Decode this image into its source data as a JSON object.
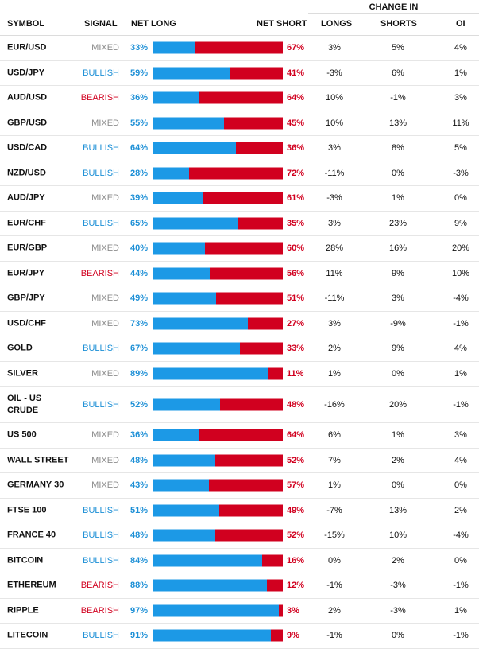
{
  "colors": {
    "bullish": "#1c8fd6",
    "bearish": "#d1001f",
    "mixed": "#8c8c8c",
    "long_bar": "#1c99e6",
    "short_bar": "#d1001f"
  },
  "header": {
    "change_in": "CHANGE IN",
    "symbol": "SYMBOL",
    "signal": "SIGNAL",
    "net_long": "NET LONG",
    "net_short": "NET SHORT",
    "longs": "LONGS",
    "shorts": "SHORTS",
    "oi": "OI"
  },
  "rows": [
    {
      "symbol": "EUR/USD",
      "signal": "MIXED",
      "net_long": "33%",
      "net_short": "67%",
      "long_frac": 0.33,
      "longs": "3%",
      "shorts": "5%",
      "oi": "4%"
    },
    {
      "symbol": "USD/JPY",
      "signal": "BULLISH",
      "net_long": "59%",
      "net_short": "41%",
      "long_frac": 0.59,
      "longs": "-3%",
      "shorts": "6%",
      "oi": "1%"
    },
    {
      "symbol": "AUD/USD",
      "signal": "BEARISH",
      "net_long": "36%",
      "net_short": "64%",
      "long_frac": 0.36,
      "longs": "10%",
      "shorts": "-1%",
      "oi": "3%"
    },
    {
      "symbol": "GBP/USD",
      "signal": "MIXED",
      "net_long": "55%",
      "net_short": "45%",
      "long_frac": 0.55,
      "longs": "10%",
      "shorts": "13%",
      "oi": "11%"
    },
    {
      "symbol": "USD/CAD",
      "signal": "BULLISH",
      "net_long": "64%",
      "net_short": "36%",
      "long_frac": 0.64,
      "longs": "3%",
      "shorts": "8%",
      "oi": "5%"
    },
    {
      "symbol": "NZD/USD",
      "signal": "BULLISH",
      "net_long": "28%",
      "net_short": "72%",
      "long_frac": 0.28,
      "longs": "-11%",
      "shorts": "0%",
      "oi": "-3%"
    },
    {
      "symbol": "AUD/JPY",
      "signal": "MIXED",
      "net_long": "39%",
      "net_short": "61%",
      "long_frac": 0.39,
      "longs": "-3%",
      "shorts": "1%",
      "oi": "0%"
    },
    {
      "symbol": "EUR/CHF",
      "signal": "BULLISH",
      "net_long": "65%",
      "net_short": "35%",
      "long_frac": 0.65,
      "longs": "3%",
      "shorts": "23%",
      "oi": "9%"
    },
    {
      "symbol": "EUR/GBP",
      "signal": "MIXED",
      "net_long": "40%",
      "net_short": "60%",
      "long_frac": 0.4,
      "longs": "28%",
      "shorts": "16%",
      "oi": "20%"
    },
    {
      "symbol": "EUR/JPY",
      "signal": "BEARISH",
      "net_long": "44%",
      "net_short": "56%",
      "long_frac": 0.44,
      "longs": "11%",
      "shorts": "9%",
      "oi": "10%"
    },
    {
      "symbol": "GBP/JPY",
      "signal": "MIXED",
      "net_long": "49%",
      "net_short": "51%",
      "long_frac": 0.49,
      "longs": "-11%",
      "shorts": "3%",
      "oi": "-4%"
    },
    {
      "symbol": "USD/CHF",
      "signal": "MIXED",
      "net_long": "73%",
      "net_short": "27%",
      "long_frac": 0.73,
      "longs": "3%",
      "shorts": "-9%",
      "oi": "-1%"
    },
    {
      "symbol": "GOLD",
      "signal": "BULLISH",
      "net_long": "67%",
      "net_short": "33%",
      "long_frac": 0.67,
      "longs": "2%",
      "shorts": "9%",
      "oi": "4%"
    },
    {
      "symbol": "SILVER",
      "signal": "MIXED",
      "net_long": "89%",
      "net_short": "11%",
      "long_frac": 0.89,
      "longs": "1%",
      "shorts": "0%",
      "oi": "1%"
    },
    {
      "symbol": "OIL - US CRUDE",
      "signal": "BULLISH",
      "net_long": "52%",
      "net_short": "48%",
      "long_frac": 0.52,
      "longs": "-16%",
      "shorts": "20%",
      "oi": "-1%"
    },
    {
      "symbol": "US 500",
      "signal": "MIXED",
      "net_long": "36%",
      "net_short": "64%",
      "long_frac": 0.36,
      "longs": "6%",
      "shorts": "1%",
      "oi": "3%"
    },
    {
      "symbol": "WALL STREET",
      "signal": "MIXED",
      "net_long": "48%",
      "net_short": "52%",
      "long_frac": 0.48,
      "longs": "7%",
      "shorts": "2%",
      "oi": "4%"
    },
    {
      "symbol": "GERMANY 30",
      "signal": "MIXED",
      "net_long": "43%",
      "net_short": "57%",
      "long_frac": 0.43,
      "longs": "1%",
      "shorts": "0%",
      "oi": "0%"
    },
    {
      "symbol": "FTSE 100",
      "signal": "BULLISH",
      "net_long": "51%",
      "net_short": "49%",
      "long_frac": 0.51,
      "longs": "-7%",
      "shorts": "13%",
      "oi": "2%"
    },
    {
      "symbol": "FRANCE 40",
      "signal": "BULLISH",
      "net_long": "48%",
      "net_short": "52%",
      "long_frac": 0.48,
      "longs": "-15%",
      "shorts": "10%",
      "oi": "-4%"
    },
    {
      "symbol": "BITCOIN",
      "signal": "BULLISH",
      "net_long": "84%",
      "net_short": "16%",
      "long_frac": 0.84,
      "longs": "0%",
      "shorts": "2%",
      "oi": "0%"
    },
    {
      "symbol": "ETHEREUM",
      "signal": "BEARISH",
      "net_long": "88%",
      "net_short": "12%",
      "long_frac": 0.88,
      "longs": "-1%",
      "shorts": "-3%",
      "oi": "-1%"
    },
    {
      "symbol": "RIPPLE",
      "signal": "BEARISH",
      "net_long": "97%",
      "net_short": "3%",
      "long_frac": 0.97,
      "longs": "2%",
      "shorts": "-3%",
      "oi": "1%"
    },
    {
      "symbol": "LITECOIN",
      "signal": "BULLISH",
      "net_long": "91%",
      "net_short": "9%",
      "long_frac": 0.91,
      "longs": "-1%",
      "shorts": "0%",
      "oi": "-1%"
    }
  ]
}
